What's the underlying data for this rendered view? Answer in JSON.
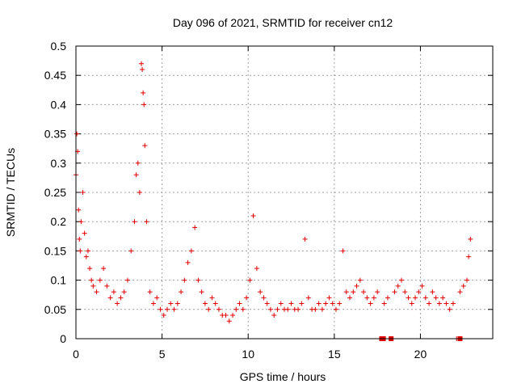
{
  "chart_data": {
    "type": "scatter",
    "title": "Day 096 of 2021, SRMTID for receiver cn12",
    "xlabel": "GPS time / hours",
    "ylabel": "SRMTID / TECUs",
    "xlim": [
      0,
      24.2
    ],
    "ylim": [
      0,
      0.5
    ],
    "x_ticks": [
      0,
      5,
      10,
      15,
      20
    ],
    "x_tick_labels": [
      "0",
      "5",
      "10",
      "15",
      "20"
    ],
    "y_ticks": [
      0,
      0.05,
      0.1,
      0.15,
      0.2,
      0.25,
      0.3,
      0.35,
      0.4,
      0.45,
      0.5
    ],
    "y_tick_labels": [
      "0",
      "0.05",
      "0.1",
      "0.15",
      "0.2",
      "0.25",
      "0.3",
      "0.35",
      "0.4",
      "0.45",
      "0.5"
    ],
    "grid": true,
    "marker": "+",
    "color": "#e00000",
    "series": [
      {
        "name": "SRMTID",
        "x": [
          0.0,
          0.05,
          0.1,
          0.15,
          0.2,
          0.25,
          0.3,
          0.4,
          0.5,
          0.6,
          0.7,
          0.8,
          0.9,
          1.0,
          1.2,
          1.4,
          1.6,
          1.8,
          2.0,
          2.2,
          2.4,
          2.6,
          2.8,
          3.0,
          3.2,
          3.4,
          3.5,
          3.6,
          3.7,
          3.8,
          3.85,
          3.9,
          3.95,
          4.0,
          4.1,
          4.3,
          4.5,
          4.7,
          4.9,
          5.1,
          5.3,
          5.5,
          5.7,
          5.9,
          6.1,
          6.3,
          6.5,
          6.7,
          6.9,
          7.1,
          7.3,
          7.5,
          7.7,
          7.9,
          8.1,
          8.3,
          8.5,
          8.7,
          8.9,
          9.1,
          9.3,
          9.5,
          9.7,
          9.9,
          10.1,
          10.3,
          10.5,
          10.7,
          10.9,
          11.1,
          11.3,
          11.5,
          11.7,
          11.9,
          12.1,
          12.3,
          12.5,
          12.7,
          12.9,
          13.1,
          13.3,
          13.5,
          13.7,
          13.9,
          14.1,
          14.3,
          14.5,
          14.7,
          14.9,
          15.1,
          15.3,
          15.5,
          15.7,
          15.9,
          16.1,
          16.3,
          16.5,
          16.7,
          16.9,
          17.1,
          17.3,
          17.5,
          17.7,
          17.9,
          18.1,
          18.3,
          18.5,
          18.7,
          18.9,
          19.1,
          19.3,
          19.5,
          19.7,
          19.9,
          20.1,
          20.3,
          20.5,
          20.7,
          20.9,
          21.1,
          21.3,
          21.5,
          21.7,
          21.9,
          22.1,
          22.3,
          22.5,
          22.7,
          22.8,
          22.9
        ],
        "y": [
          0.28,
          0.35,
          0.32,
          0.22,
          0.17,
          0.15,
          0.2,
          0.25,
          0.18,
          0.14,
          0.15,
          0.12,
          0.1,
          0.09,
          0.08,
          0.1,
          0.12,
          0.09,
          0.07,
          0.08,
          0.06,
          0.07,
          0.08,
          0.1,
          0.15,
          0.2,
          0.28,
          0.3,
          0.25,
          0.47,
          0.46,
          0.42,
          0.4,
          0.33,
          0.2,
          0.08,
          0.06,
          0.07,
          0.05,
          0.04,
          0.05,
          0.06,
          0.05,
          0.06,
          0.08,
          0.1,
          0.13,
          0.15,
          0.19,
          0.1,
          0.08,
          0.06,
          0.05,
          0.07,
          0.06,
          0.05,
          0.04,
          0.04,
          0.03,
          0.04,
          0.05,
          0.06,
          0.05,
          0.07,
          0.1,
          0.21,
          0.12,
          0.08,
          0.07,
          0.06,
          0.05,
          0.04,
          0.05,
          0.06,
          0.05,
          0.05,
          0.06,
          0.05,
          0.05,
          0.06,
          0.17,
          0.07,
          0.05,
          0.05,
          0.06,
          0.05,
          0.06,
          0.07,
          0.06,
          0.05,
          0.06,
          0.15,
          0.08,
          0.07,
          0.08,
          0.09,
          0.1,
          0.08,
          0.07,
          0.06,
          0.07,
          0.08,
          0.0,
          0.06,
          0.07,
          0.0,
          0.08,
          0.09,
          0.1,
          0.08,
          0.07,
          0.06,
          0.07,
          0.08,
          0.09,
          0.07,
          0.06,
          0.08,
          0.07,
          0.06,
          0.07,
          0.06,
          0.05,
          0.06,
          0.0,
          0.08,
          0.09,
          0.1,
          0.14,
          0.17
        ]
      }
    ],
    "zero_marks_x": [
      17.75,
      17.85,
      18.3,
      22.3
    ]
  }
}
